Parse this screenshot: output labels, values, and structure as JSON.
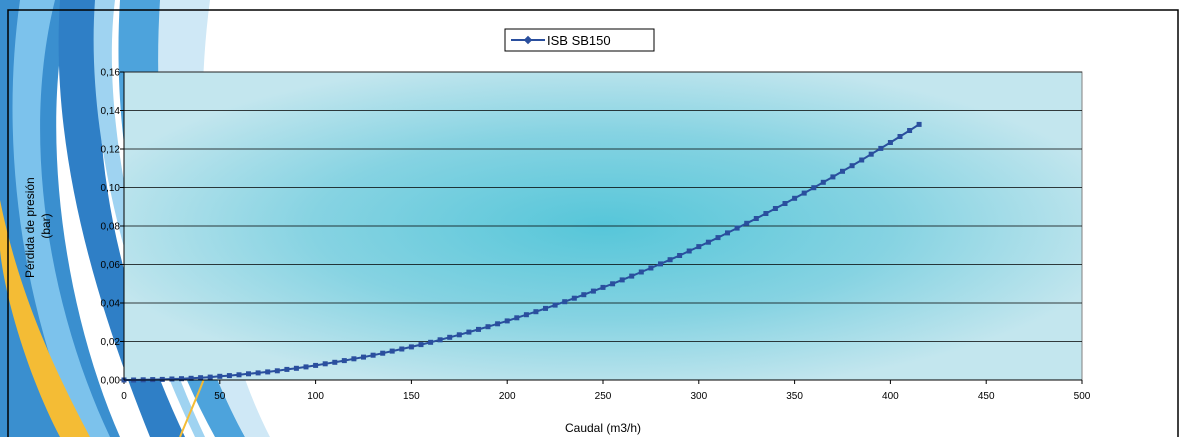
{
  "chart_data": {
    "type": "line",
    "title": "",
    "xlabel": "Caudal (m3/h)",
    "ylabel": [
      "Pérdida de presión",
      "(bar)"
    ],
    "xlim": [
      0,
      500
    ],
    "ylim": [
      0,
      0.16
    ],
    "x_ticks": [
      0,
      50,
      100,
      150,
      200,
      250,
      300,
      350,
      400,
      450,
      500
    ],
    "x_tick_labels": [
      "0",
      "50",
      "100",
      "150",
      "200",
      "250",
      "300",
      "350",
      "400",
      "450",
      "500"
    ],
    "y_ticks": [
      0,
      0.02,
      0.04,
      0.06,
      0.08,
      0.1,
      0.12,
      0.14,
      0.16
    ],
    "y_tick_labels": [
      "0,00",
      "0,02",
      "0,04",
      "0,06",
      "0,08",
      "0,10",
      "0,12",
      "0,14",
      "0,16"
    ],
    "grid": "horizontal",
    "legend_position": "top-center",
    "series": [
      {
        "name": "ISB SB150",
        "color": "#2a4f9e",
        "marker": "square",
        "x": [
          0,
          5,
          10,
          15,
          20,
          25,
          30,
          35,
          40,
          45,
          50,
          55,
          60,
          65,
          70,
          75,
          80,
          85,
          90,
          95,
          100,
          105,
          110,
          115,
          120,
          125,
          130,
          135,
          140,
          145,
          150,
          155,
          160,
          165,
          170,
          175,
          180,
          185,
          190,
          195,
          200,
          205,
          210,
          215,
          220,
          225,
          230,
          235,
          240,
          245,
          250,
          255,
          260,
          265,
          270,
          275,
          280,
          285,
          290,
          295,
          300,
          305,
          310,
          315,
          320,
          325,
          330,
          335,
          340,
          345,
          350,
          355,
          360,
          365,
          370,
          375,
          380,
          385,
          390,
          395,
          400,
          405,
          410,
          415
        ],
        "y": [
          0.0,
          0.0,
          0.0001,
          0.0002,
          0.0003,
          0.0005,
          0.0007,
          0.0009,
          0.0012,
          0.0015,
          0.0019,
          0.0023,
          0.0027,
          0.0032,
          0.0037,
          0.0042,
          0.0048,
          0.0055,
          0.0061,
          0.0068,
          0.0076,
          0.0084,
          0.0092,
          0.0101,
          0.011,
          0.0119,
          0.0129,
          0.0139,
          0.015,
          0.0161,
          0.0172,
          0.0184,
          0.0196,
          0.0209,
          0.0222,
          0.0235,
          0.0249,
          0.0263,
          0.0277,
          0.0292,
          0.0307,
          0.0323,
          0.0339,
          0.0355,
          0.0372,
          0.0389,
          0.0407,
          0.0425,
          0.0443,
          0.0462,
          0.0481,
          0.05,
          0.052,
          0.054,
          0.0561,
          0.0582,
          0.0603,
          0.0625,
          0.0647,
          0.067,
          0.0693,
          0.0716,
          0.074,
          0.0764,
          0.0789,
          0.0814,
          0.0839,
          0.0865,
          0.0891,
          0.0917,
          0.0944,
          0.0971,
          0.0999,
          0.1027,
          0.1055,
          0.1084,
          0.1113,
          0.1143,
          0.1173,
          0.1203,
          0.1234,
          0.1265,
          0.1296,
          0.1328
        ]
      }
    ]
  },
  "colors": {
    "plot_bg": "#a9dce8",
    "plot_bg_center": "#5ec8d8",
    "stripe_blue": "#2f8fd0",
    "stripe_light": "#79c0ea",
    "stripe_yellow": "#f4bc35",
    "series": "#2a4f9e"
  }
}
